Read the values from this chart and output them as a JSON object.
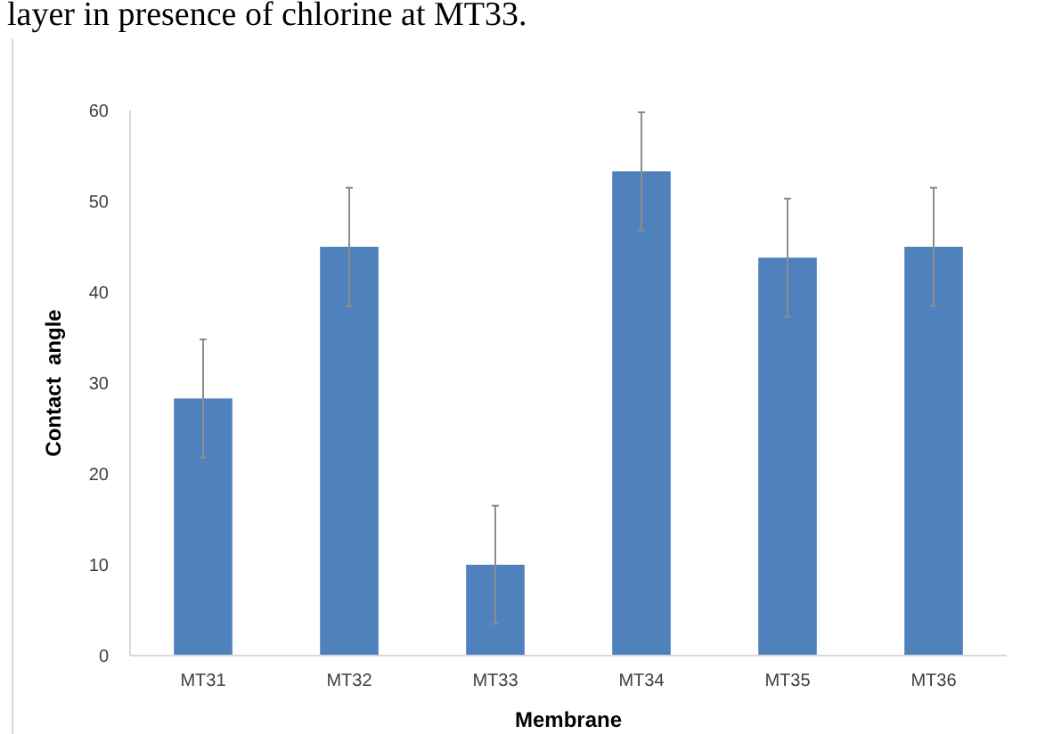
{
  "chart_data": {
    "type": "bar",
    "xlabel": "Membrane",
    "ylabel": "Contact  angle",
    "annotations": [
      "layer in presence of chlorine at MT33."
    ],
    "categories": [
      "MT31",
      "MT32",
      "MT33",
      "MT34",
      "MT35",
      "MT36"
    ],
    "values": [
      28.3,
      45,
      10,
      53.3,
      43.8,
      45
    ],
    "errors": [
      6.5,
      6.5,
      6.5,
      6.5,
      6.5,
      6.5
    ],
    "color": "#4f81bd",
    "ylim": [
      0,
      60
    ],
    "yticks": [
      0,
      10,
      20,
      30,
      40,
      50,
      60
    ],
    "grid": false
  }
}
